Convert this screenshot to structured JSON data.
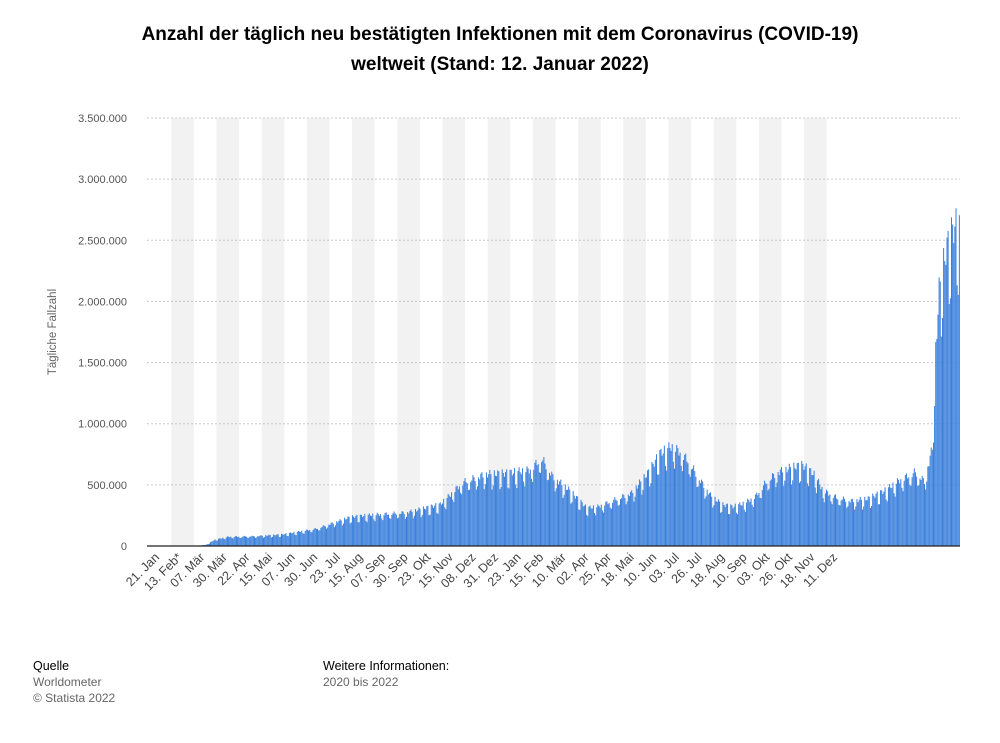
{
  "chart_data": {
    "type": "bar",
    "title": "Anzahl der täglich neu bestätigten Infektionen mit dem Coronavirus (COVID-19)",
    "subtitle": "weltweit (Stand: 12. Januar 2022)",
    "ylabel": "Tägliche Fallzahl",
    "xlabel": "",
    "ylim": [
      0,
      3500000
    ],
    "y_ticks": [
      {
        "value": 0,
        "label": "0"
      },
      {
        "value": 500000,
        "label": "500.000"
      },
      {
        "value": 1000000,
        "label": "1.000.000"
      },
      {
        "value": 1500000,
        "label": "1.500.000"
      },
      {
        "value": 2000000,
        "label": "2.000.000"
      },
      {
        "value": 2500000,
        "label": "2.500.000"
      },
      {
        "value": 3000000,
        "label": "3.000.000"
      },
      {
        "value": 3500000,
        "label": "3.500.000"
      }
    ],
    "x_ticks": [
      "21. Jan",
      "13. Feb*",
      "07. Mär",
      "30. Mär",
      "22. Apr",
      "15. Mai",
      "07. Jun",
      "30. Jun",
      "23. Jul",
      "15. Aug",
      "07. Sep",
      "30. Sep",
      "23. Okt",
      "15. Nov",
      "08. Dez",
      "31. Dez",
      "23. Jan",
      "15. Feb",
      "10. Mär",
      "02. Apr",
      "25. Apr",
      "18. Mai",
      "10. Jun",
      "03. Jul",
      "26. Jul",
      "18. Aug",
      "10. Sep",
      "03. Okt",
      "26. Okt",
      "18. Nov",
      "11. Dez"
    ],
    "grid": true,
    "color": "#3a7fdb",
    "days": 722,
    "anchors": [
      [
        0,
        0
      ],
      [
        40,
        0
      ],
      [
        52,
        10000
      ],
      [
        60,
        55000
      ],
      [
        72,
        80000
      ],
      [
        95,
        85000
      ],
      [
        120,
        100000
      ],
      [
        150,
        150000
      ],
      [
        180,
        250000
      ],
      [
        200,
        270000
      ],
      [
        230,
        290000
      ],
      [
        260,
        360000
      ],
      [
        280,
        550000
      ],
      [
        300,
        620000
      ],
      [
        320,
        630000
      ],
      [
        340,
        660000
      ],
      [
        350,
        760000
      ],
      [
        360,
        600000
      ],
      [
        375,
        480000
      ],
      [
        390,
        330000
      ],
      [
        400,
        340000
      ],
      [
        410,
        380000
      ],
      [
        430,
        460000
      ],
      [
        445,
        640000
      ],
      [
        455,
        800000
      ],
      [
        465,
        860000
      ],
      [
        472,
        820000
      ],
      [
        480,
        740000
      ],
      [
        490,
        580000
      ],
      [
        500,
        440000
      ],
      [
        510,
        360000
      ],
      [
        520,
        340000
      ],
      [
        530,
        370000
      ],
      [
        540,
        430000
      ],
      [
        550,
        560000
      ],
      [
        560,
        640000
      ],
      [
        572,
        680000
      ],
      [
        582,
        700000
      ],
      [
        592,
        620000
      ],
      [
        600,
        480000
      ],
      [
        612,
        420000
      ],
      [
        625,
        390000
      ],
      [
        640,
        410000
      ],
      [
        655,
        480000
      ],
      [
        668,
        570000
      ],
      [
        682,
        640000
      ],
      [
        690,
        560000
      ],
      [
        697,
        850000
      ],
      [
        700,
        1700000
      ],
      [
        703,
        2200000
      ],
      [
        708,
        2500000
      ],
      [
        712,
        2650000
      ],
      [
        716,
        2750000
      ],
      [
        721,
        2780000
      ]
    ]
  },
  "footer": {
    "source_title": "Quelle",
    "source_1": "Worldometer",
    "source_2": "© Statista 2022",
    "info_title": "Weitere Informationen:",
    "info_1": "2020 bis 2022"
  }
}
